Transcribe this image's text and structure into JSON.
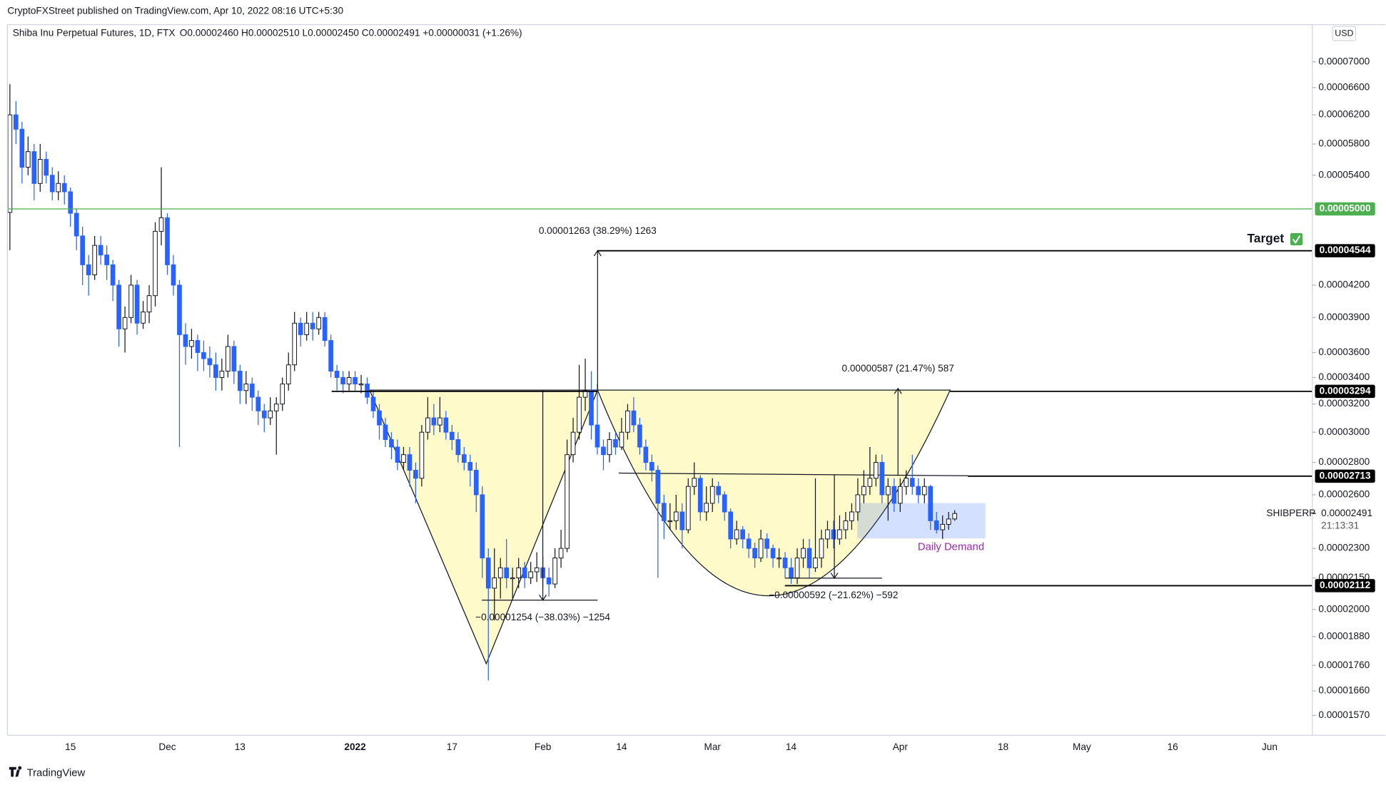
{
  "header": "CryptoFXStreet published on TradingView.com, Apr 10, 2022 08:16 UTC+5:30",
  "footer": "TradingView",
  "chart_data": {
    "type": "candlestick",
    "title": "Shiba Inu Perpetual Futures, 1D, FTX",
    "ohlc_legend": "O0.00002460 H0.00002510 L0.00002450 C0.00002491 +0.00000031 (+1.26%)",
    "currency": "USD",
    "symbol": "SHIBPERP",
    "countdown": "21:13:31",
    "log_scale": true,
    "grid": false,
    "up_color": "#ffffff",
    "down_color": "#2962ff",
    "outline_color": "#131722",
    "categories": [
      null,
      null,
      null,
      null,
      null,
      null,
      null,
      null,
      null,
      null,
      "15",
      null,
      null,
      null,
      null,
      null,
      null,
      null,
      null,
      null,
      null,
      null,
      null,
      null,
      null,
      null,
      "Dec",
      null,
      null,
      null,
      null,
      null,
      null,
      null,
      null,
      null,
      null,
      null,
      "13",
      null,
      null,
      null,
      null,
      null,
      null,
      null,
      null,
      null,
      null,
      null,
      null,
      null,
      null,
      null,
      null,
      null,
      null,
      "2022",
      null,
      null,
      null,
      null,
      null,
      null,
      null,
      null,
      null,
      null,
      null,
      null,
      null,
      null,
      null,
      "17",
      null,
      null,
      null,
      null,
      null,
      null,
      null,
      null,
      null,
      null,
      null,
      null,
      null,
      null,
      "Feb",
      null,
      null,
      null,
      null,
      null,
      null,
      null,
      null,
      null,
      null,
      null,
      null,
      "14",
      null,
      null,
      null,
      null,
      null,
      null,
      null,
      null,
      null,
      null,
      null,
      null,
      null,
      null,
      "Mar",
      null,
      null,
      null,
      null,
      null,
      null,
      null,
      null,
      null,
      null,
      null,
      null,
      "14",
      null,
      null,
      null,
      null,
      null,
      null,
      null,
      null,
      null,
      null,
      null,
      null,
      null,
      null,
      null,
      null,
      null,
      "Apr",
      null,
      null,
      null,
      null,
      null,
      null,
      null,
      null,
      null,
      null,
      null,
      null,
      null,
      null,
      null,
      null,
      "18",
      null,
      null,
      null,
      null,
      null,
      null,
      null,
      null,
      null,
      null,
      null,
      null,
      "May",
      null,
      null,
      null,
      null,
      null,
      null,
      null,
      null,
      null,
      null,
      null,
      null,
      null,
      null,
      "16",
      null,
      null,
      null,
      null,
      null,
      null,
      null,
      null,
      null,
      null,
      null,
      null,
      null,
      null,
      null,
      "Jun"
    ],
    "open": [
      4.96e-05,
      6.2e-05,
      6e-05,
      5.5e-05,
      5.7e-05,
      5.3e-05,
      5.6e-05,
      5.4e-05,
      5.2e-05,
      5.3e-05,
      5.2e-05,
      4.95e-05,
      4.7e-05,
      4.4e-05,
      4.3e-05,
      4.6e-05,
      4.5e-05,
      4.4e-05,
      4.2e-05,
      3.8e-05,
      3.9e-05,
      4.2e-05,
      3.85e-05,
      3.95e-05,
      4.1e-05,
      4.75e-05,
      4.9e-05,
      4.4e-05,
      4.2e-05,
      3.75e-05,
      3.65e-05,
      3.7e-05,
      3.6e-05,
      3.55e-05,
      3.5e-05,
      3.4e-05,
      3.45e-05,
      3.65e-05,
      3.45e-05,
      3.3e-05,
      3.35e-05,
      3.25e-05,
      3.15e-05,
      3.1e-05,
      3.15e-05,
      3.2e-05,
      3.35e-05,
      3.5e-05,
      3.85e-05,
      3.75e-05,
      3.85e-05,
      3.8e-05,
      3.9e-05,
      3.7e-05,
      3.45e-05,
      3.4e-05,
      3.35e-05,
      3.4e-05,
      3.35e-05,
      3.35e-05,
      3.25e-05,
      3.15e-05,
      3.05e-05,
      2.95e-05,
      2.9e-05,
      2.8e-05,
      2.85e-05,
      2.75e-05,
      2.7e-05,
      3e-05,
      3.1e-05,
      3.05e-05,
      3.1e-05,
      3e-05,
      2.95e-05,
      2.85e-05,
      2.8e-05,
      2.75e-05,
      2.6e-05,
      2.25e-05,
      2.1e-05,
      2.15e-05,
      2.2e-05,
      2.15e-05,
      2.15e-05,
      2.2e-05,
      2.15e-05,
      2.18e-05,
      2.2e-05,
      2.15e-05,
      2.12e-05,
      2.25e-05,
      2.3e-05,
      2.85e-05,
      3e-05,
      3.25e-05,
      3.3e-05,
      3.05e-05,
      2.9e-05,
      2.85e-05,
      2.95e-05,
      2.9e-05,
      3e-05,
      3.15e-05,
      3.05e-05,
      2.9e-05,
      2.8e-05,
      2.75e-05,
      2.55e-05,
      2.45e-05,
      2.45e-05,
      2.5e-05,
      2.4e-05,
      2.65e-05,
      2.7e-05,
      2.5e-05,
      2.55e-05,
      2.65e-05,
      2.6e-05,
      2.5e-05,
      2.35e-05,
      2.4e-05,
      2.35e-05,
      2.3e-05,
      2.25e-05,
      2.35e-05,
      2.3e-05,
      2.25e-05,
      2.25e-05,
      2.2e-05,
      2.15e-05,
      2.25e-05,
      2.3e-05,
      2.2e-05,
      2.25e-05,
      2.35e-05,
      2.4e-05,
      2.35e-05,
      2.4e-05,
      2.45e-05,
      2.5e-05,
      2.6e-05,
      2.65e-05,
      2.7e-05,
      2.8e-05,
      2.6e-05,
      2.65e-05,
      2.55e-05,
      2.65e-05,
      2.7e-05,
      2.65e-05,
      2.6e-05,
      2.65e-05,
      2.45e-05,
      2.4e-05,
      2.43e-05,
      2.46e-05,
      null,
      null,
      null,
      null,
      null,
      null,
      null,
      null,
      null,
      null,
      null,
      null,
      null,
      null,
      null,
      null,
      null,
      null,
      null,
      null,
      null,
      null,
      null,
      null,
      null,
      null,
      null,
      null,
      null,
      null,
      null,
      null,
      null,
      null,
      null,
      null,
      null,
      null,
      null,
      null,
      null,
      null,
      null,
      null,
      null,
      null,
      null,
      null,
      null,
      null,
      null,
      null
    ],
    "high": [
      6.65e-05,
      6.4e-05,
      6.1e-05,
      5.9e-05,
      5.8e-05,
      5.8e-05,
      5.7e-05,
      5.5e-05,
      5.45e-05,
      5.4e-05,
      5.25e-05,
      5e-05,
      4.8e-05,
      4.5e-05,
      4.7e-05,
      4.7e-05,
      4.6e-05,
      4.45e-05,
      4.25e-05,
      4e-05,
      4.3e-05,
      4.25e-05,
      4.05e-05,
      4.2e-05,
      4.85e-05,
      5.5e-05,
      4.95e-05,
      4.5e-05,
      4.25e-05,
      3.85e-05,
      3.8e-05,
      3.75e-05,
      3.7e-05,
      3.65e-05,
      3.6e-05,
      3.55e-05,
      3.75e-05,
      3.7e-05,
      3.5e-05,
      3.45e-05,
      3.4e-05,
      3.3e-05,
      3.2e-05,
      3.25e-05,
      3.25e-05,
      3.4e-05,
      3.6e-05,
      3.95e-05,
      3.9e-05,
      3.95e-05,
      3.95e-05,
      3.95e-05,
      3.95e-05,
      3.75e-05,
      3.5e-05,
      3.45e-05,
      3.45e-05,
      3.45e-05,
      3.42e-05,
      3.4e-05,
      3.3e-05,
      3.2e-05,
      3.1e-05,
      3e-05,
      2.95e-05,
      2.9e-05,
      2.9e-05,
      2.8e-05,
      3.05e-05,
      3.25e-05,
      3.2e-05,
      3.25e-05,
      3.15e-05,
      3.05e-05,
      3e-05,
      2.9e-05,
      2.85e-05,
      2.8e-05,
      2.65e-05,
      2.3e-05,
      2.3e-05,
      2.25e-05,
      2.35e-05,
      2.2e-05,
      2.25e-05,
      2.23e-05,
      2.23e-05,
      2.28e-05,
      2.26e-05,
      2.2e-05,
      2.3e-05,
      2.4e-05,
      2.95e-05,
      3.1e-05,
      3.5e-05,
      3.55e-05,
      3.45e-05,
      3.35e-05,
      2.95e-05,
      3e-05,
      3e-05,
      3.1e-05,
      3.2e-05,
      3.25e-05,
      3.1e-05,
      2.95e-05,
      2.85e-05,
      2.78e-05,
      2.6e-05,
      2.55e-05,
      2.6e-05,
      2.55e-05,
      2.7e-05,
      2.8e-05,
      2.72e-05,
      2.65e-05,
      2.7e-05,
      2.68e-05,
      2.62e-05,
      2.52e-05,
      2.45e-05,
      2.42e-05,
      2.38e-05,
      2.33e-05,
      2.4e-05,
      2.38e-05,
      2.32e-05,
      2.3e-05,
      2.28e-05,
      2.25e-05,
      2.3e-05,
      2.35e-05,
      2.35e-05,
      2.7e-05,
      2.4e-05,
      2.45e-05,
      2.45e-05,
      2.48e-05,
      2.5e-05,
      2.55e-05,
      2.7e-05,
      2.75e-05,
      2.9e-05,
      2.85e-05,
      2.85e-05,
      2.7e-05,
      2.7e-05,
      2.7e-05,
      2.75e-05,
      2.85e-05,
      2.7e-05,
      2.7e-05,
      2.66e-05,
      2.5e-05,
      2.48e-05,
      2.5e-05,
      2.51e-05,
      null,
      null,
      null,
      null,
      null,
      null,
      null,
      null,
      null,
      null,
      null,
      null,
      null,
      null,
      null,
      null,
      null,
      null,
      null,
      null,
      null,
      null,
      null,
      null,
      null,
      null,
      null,
      null,
      null,
      null,
      null,
      null,
      null,
      null,
      null,
      null,
      null,
      null,
      null,
      null,
      null,
      null,
      null,
      null,
      null,
      null,
      null,
      null,
      null,
      null,
      null,
      null
    ],
    "low": [
      4.55e-05,
      5.8e-05,
      5.3e-05,
      5.4e-05,
      5.1e-05,
      5.2e-05,
      5.3e-05,
      5.1e-05,
      5.1e-05,
      5.05e-05,
      4.8e-05,
      4.55e-05,
      4.2e-05,
      4.1e-05,
      4.25e-05,
      4.4e-05,
      4.25e-05,
      4.05e-05,
      3.65e-05,
      3.6e-05,
      3.85e-05,
      3.75e-05,
      3.8e-05,
      3.85e-05,
      4e-05,
      4.6e-05,
      4.3e-05,
      4.1e-05,
      2.9e-05,
      3.5e-05,
      3.55e-05,
      3.45e-05,
      3.45e-05,
      3.4e-05,
      3.3e-05,
      3.3e-05,
      3.4e-05,
      3.35e-05,
      3.2e-05,
      3.2e-05,
      3.15e-05,
      3.05e-05,
      3e-05,
      3.05e-05,
      2.85e-05,
      3.15e-05,
      3.3e-05,
      3.45e-05,
      3.65e-05,
      3.7e-05,
      3.7e-05,
      3.75e-05,
      3.65e-05,
      3.4e-05,
      3.3e-05,
      3.28e-05,
      3.3e-05,
      3.3e-05,
      3.28e-05,
      3.2e-05,
      3.1e-05,
      2.95e-05,
      2.9e-05,
      2.82e-05,
      2.75e-05,
      2.75e-05,
      2.65e-05,
      2.55e-05,
      2.65e-05,
      2.95e-05,
      2.98e-05,
      3e-05,
      2.95e-05,
      2.88e-05,
      2.8e-05,
      2.75e-05,
      2.65e-05,
      2.5e-05,
      2.15e-05,
      1.7e-05,
      1.95e-05,
      2.05e-05,
      2.1e-05,
      2.05e-05,
      2.1e-05,
      2.1e-05,
      2.12e-05,
      2.13e-05,
      2.1e-05,
      2.06e-05,
      2.1e-05,
      2.2e-05,
      2.28e-05,
      2.8e-05,
      2.95e-05,
      3.15e-05,
      2.95e-05,
      2.85e-05,
      2.75e-05,
      2.8e-05,
      2.85e-05,
      2.88e-05,
      2.95e-05,
      3e-05,
      2.85e-05,
      2.75e-05,
      2.68e-05,
      2.15e-05,
      2.35e-05,
      2.4e-05,
      2.4e-05,
      2.3e-05,
      2.38e-05,
      2.6e-05,
      2.45e-05,
      2.45e-05,
      2.5e-05,
      2.55e-05,
      2.45e-05,
      2.3e-05,
      2.32e-05,
      2.3e-05,
      2.25e-05,
      2.2e-05,
      2.23e-05,
      2.25e-05,
      2.2e-05,
      2.2e-05,
      2.15e-05,
      2.12e-05,
      2.12e-05,
      2.2e-05,
      2.15e-05,
      2.18e-05,
      2.2e-05,
      2.3e-05,
      2.3e-05,
      2.32e-05,
      2.35e-05,
      2.4e-05,
      2.45e-05,
      2.55e-05,
      2.6e-05,
      2.65e-05,
      2.55e-05,
      2.45e-05,
      2.5e-05,
      2.5e-05,
      2.6e-05,
      2.6e-05,
      2.55e-05,
      2.55e-05,
      2.4e-05,
      2.38e-05,
      2.35e-05,
      2.4e-05,
      2.45e-05,
      null,
      null,
      null,
      null,
      null,
      null,
      null,
      null,
      null,
      null,
      null,
      null,
      null,
      null,
      null,
      null,
      null,
      null,
      null,
      null,
      null,
      null,
      null,
      null,
      null,
      null,
      null,
      null,
      null,
      null,
      null,
      null,
      null,
      null,
      null,
      null,
      null,
      null,
      null,
      null,
      null,
      null,
      null,
      null,
      null,
      null,
      null,
      null,
      null,
      null,
      null,
      null
    ],
    "close": [
      6.2e-05,
      6e-05,
      5.5e-05,
      5.7e-05,
      5.3e-05,
      5.6e-05,
      5.4e-05,
      5.2e-05,
      5.3e-05,
      5.2e-05,
      4.95e-05,
      4.7e-05,
      4.4e-05,
      4.3e-05,
      4.6e-05,
      4.5e-05,
      4.4e-05,
      4.2e-05,
      3.8e-05,
      3.9e-05,
      4.2e-05,
      3.85e-05,
      3.95e-05,
      4.1e-05,
      4.75e-05,
      4.9e-05,
      4.4e-05,
      4.2e-05,
      3.75e-05,
      3.65e-05,
      3.7e-05,
      3.6e-05,
      3.55e-05,
      3.5e-05,
      3.4e-05,
      3.45e-05,
      3.65e-05,
      3.45e-05,
      3.3e-05,
      3.35e-05,
      3.25e-05,
      3.15e-05,
      3.1e-05,
      3.15e-05,
      3.2e-05,
      3.35e-05,
      3.5e-05,
      3.85e-05,
      3.75e-05,
      3.85e-05,
      3.8e-05,
      3.9e-05,
      3.7e-05,
      3.45e-05,
      3.4e-05,
      3.35e-05,
      3.4e-05,
      3.35e-05,
      3.35e-05,
      3.25e-05,
      3.15e-05,
      3.05e-05,
      2.95e-05,
      2.9e-05,
      2.8e-05,
      2.85e-05,
      2.75e-05,
      2.7e-05,
      3e-05,
      3.1e-05,
      3.05e-05,
      3.1e-05,
      3e-05,
      2.95e-05,
      2.85e-05,
      2.8e-05,
      2.75e-05,
      2.6e-05,
      2.25e-05,
      2.1e-05,
      2.15e-05,
      2.2e-05,
      2.15e-05,
      2.15e-05,
      2.2e-05,
      2.15e-05,
      2.18e-05,
      2.2e-05,
      2.15e-05,
      2.12e-05,
      2.25e-05,
      2.3e-05,
      2.85e-05,
      3e-05,
      3.25e-05,
      3.3e-05,
      3.05e-05,
      2.9e-05,
      2.85e-05,
      2.95e-05,
      2.9e-05,
      3e-05,
      3.15e-05,
      3.05e-05,
      2.9e-05,
      2.8e-05,
      2.75e-05,
      2.55e-05,
      2.45e-05,
      2.45e-05,
      2.5e-05,
      2.4e-05,
      2.65e-05,
      2.7e-05,
      2.5e-05,
      2.55e-05,
      2.65e-05,
      2.6e-05,
      2.5e-05,
      2.35e-05,
      2.4e-05,
      2.35e-05,
      2.3e-05,
      2.25e-05,
      2.35e-05,
      2.3e-05,
      2.25e-05,
      2.25e-05,
      2.2e-05,
      2.15e-05,
      2.25e-05,
      2.3e-05,
      2.2e-05,
      2.25e-05,
      2.35e-05,
      2.4e-05,
      2.35e-05,
      2.4e-05,
      2.45e-05,
      2.5e-05,
      2.6e-05,
      2.65e-05,
      2.7e-05,
      2.8e-05,
      2.6e-05,
      2.65e-05,
      2.55e-05,
      2.65e-05,
      2.7e-05,
      2.65e-05,
      2.6e-05,
      2.65e-05,
      2.45e-05,
      2.4e-05,
      2.43e-05,
      2.46e-05,
      2.491e-05,
      null,
      null,
      null,
      null,
      null,
      null,
      null,
      null,
      null,
      null,
      null,
      null,
      null,
      null,
      null,
      null,
      null,
      null,
      null,
      null,
      null,
      null,
      null,
      null,
      null,
      null,
      null,
      null,
      null,
      null,
      null,
      null,
      null,
      null,
      null,
      null,
      null,
      null,
      null,
      null,
      null,
      null,
      null,
      null,
      null,
      null,
      null,
      null,
      null,
      null,
      null,
      null
    ],
    "ylim": [
      1.5e-05,
      7.62e-05
    ],
    "yticks": [
      {
        "value": 7e-05,
        "label": "0.00007000"
      },
      {
        "value": 6.6e-05,
        "label": "0.00006600"
      },
      {
        "value": 6.2e-05,
        "label": "0.00006200"
      },
      {
        "value": 5.8e-05,
        "label": "0.00005800"
      },
      {
        "value": 5.4e-05,
        "label": "0.00005400"
      },
      {
        "value": 4.2e-05,
        "label": "0.00004200"
      },
      {
        "value": 3.9e-05,
        "label": "0.00003900"
      },
      {
        "value": 3.6e-05,
        "label": "0.00003600"
      },
      {
        "value": 3.4e-05,
        "label": "0.00003400"
      },
      {
        "value": 3.2e-05,
        "label": "0.00003200"
      },
      {
        "value": 3e-05,
        "label": "0.00003000"
      },
      {
        "value": 2.8e-05,
        "label": "0.00002800"
      },
      {
        "value": 2.6e-05,
        "label": "0.00002600"
      },
      {
        "value": 2.3e-05,
        "label": "0.00002300"
      },
      {
        "value": 2.15e-05,
        "label": "0.00002150"
      },
      {
        "value": 2e-05,
        "label": "0.00002000"
      },
      {
        "value": 1.88e-05,
        "label": "0.00001880"
      },
      {
        "value": 1.76e-05,
        "label": "0.00001760"
      },
      {
        "value": 1.66e-05,
        "label": "0.00001660"
      },
      {
        "value": 1.57e-05,
        "label": "0.00001570"
      }
    ],
    "last_price": {
      "value": 2.491e-05,
      "label": "0.00002491"
    },
    "levels": [
      {
        "value": 5e-05,
        "label": "0.00005000",
        "color": "#4caf50"
      },
      {
        "value": 4.544e-05,
        "label": "0.00004544",
        "color": "#000000"
      },
      {
        "value": 3.294e-05,
        "label": "0.00003294",
        "color": "#000000"
      },
      {
        "value": 2.713e-05,
        "label": "0.00002713",
        "color": "#000000"
      },
      {
        "value": 2.112e-05,
        "label": "0.00002112",
        "color": "#000000"
      }
    ],
    "annotations": {
      "target": "Target",
      "daily_demand": "Daily Demand",
      "measure_1": "0.00001263 (38.29%) 1263",
      "measure_2": "0.00000587 (21.47%) 587",
      "measure_3": "−0.00001254 (−38.03%) −1254",
      "measure_4": "−0.00000592 (−21.62%) −592"
    }
  }
}
